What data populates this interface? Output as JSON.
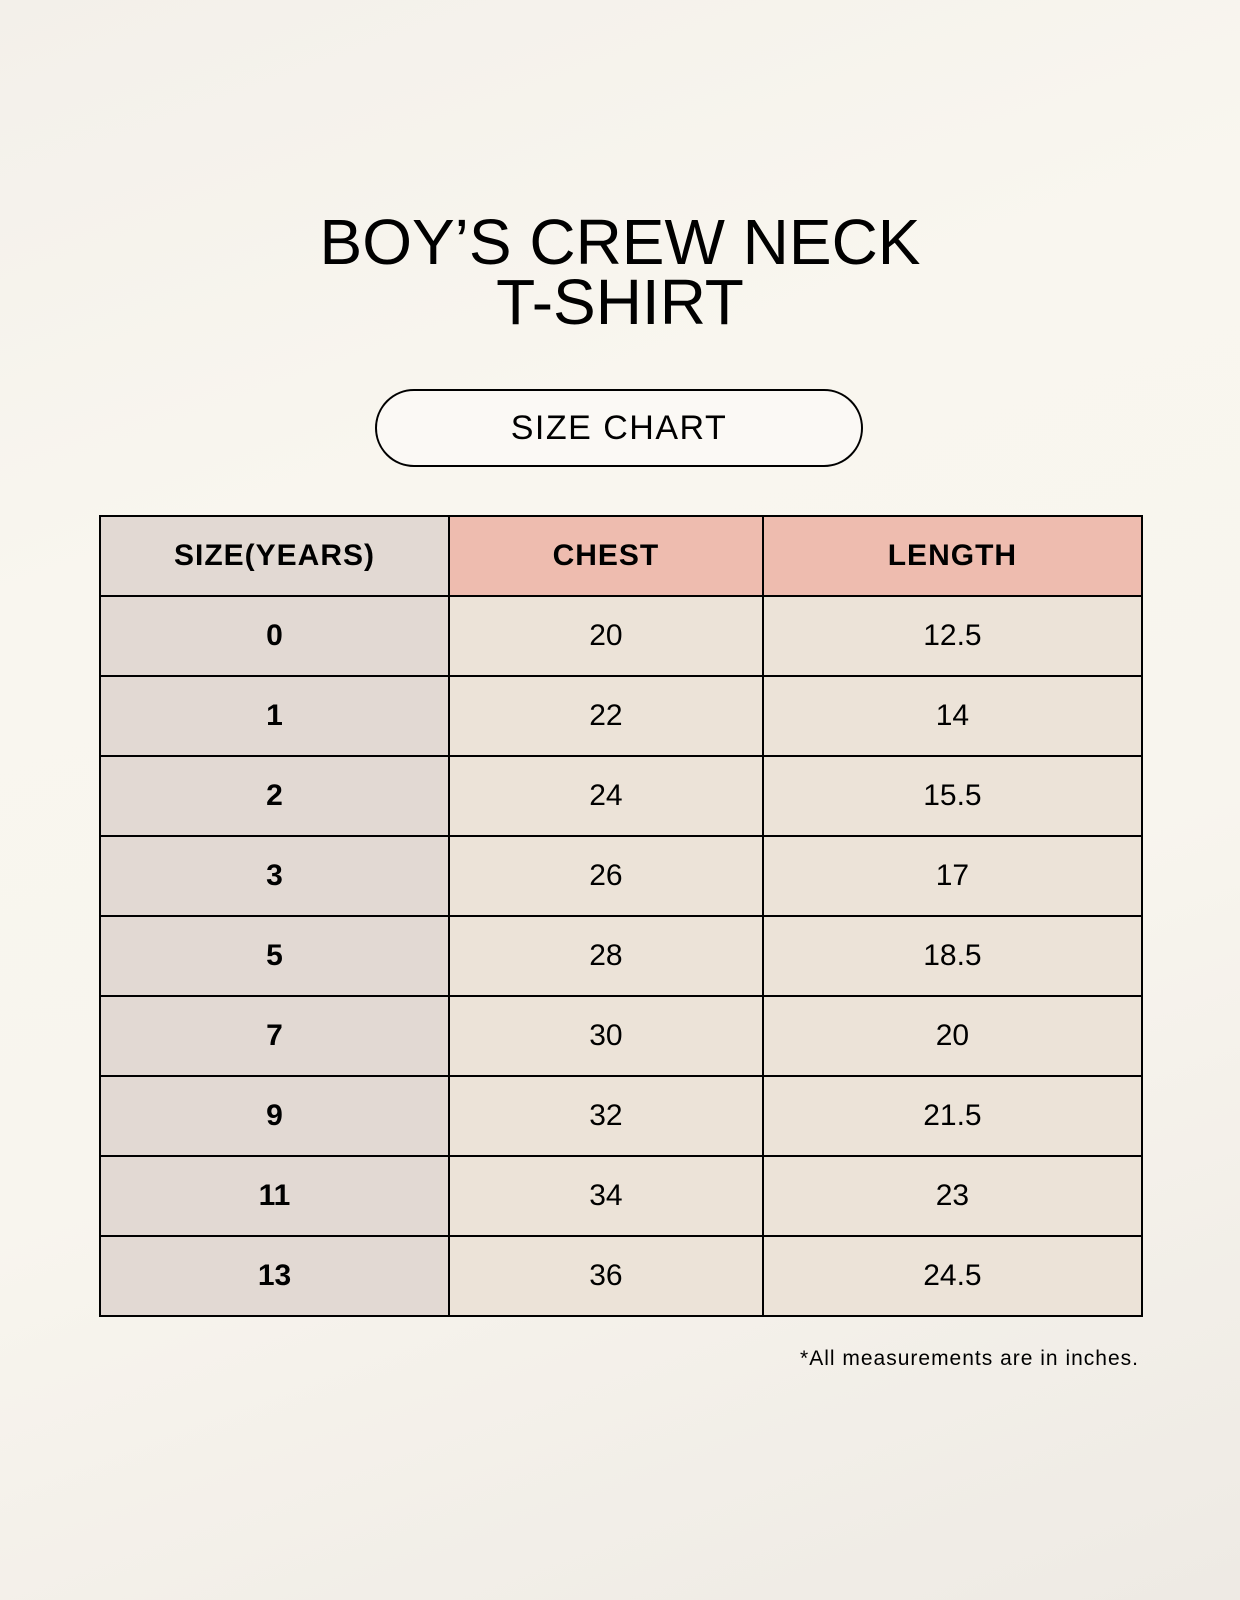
{
  "title_line1": "BOY’S CREW NECK",
  "title_line2": "T-SHIRT",
  "subtitle": "SIZE CHART",
  "table": {
    "headers": [
      "SIZE(YEARS)",
      "CHEST",
      "LENGTH"
    ],
    "rows": [
      [
        "0",
        "20",
        "12.5"
      ],
      [
        "1",
        "22",
        "14"
      ],
      [
        "2",
        "24",
        "15.5"
      ],
      [
        "3",
        "26",
        "17"
      ],
      [
        "5",
        "28",
        "18.5"
      ],
      [
        "7",
        "30",
        "20"
      ],
      [
        "9",
        "32",
        "21.5"
      ],
      [
        "11",
        "34",
        "23"
      ],
      [
        "13",
        "36",
        "24.5"
      ]
    ]
  },
  "footnote": "*All measurements are in inches.",
  "colors": {
    "size_column": "#e2d9d3",
    "header_accent": "#eebcaf",
    "cell": "#ece3d8"
  }
}
